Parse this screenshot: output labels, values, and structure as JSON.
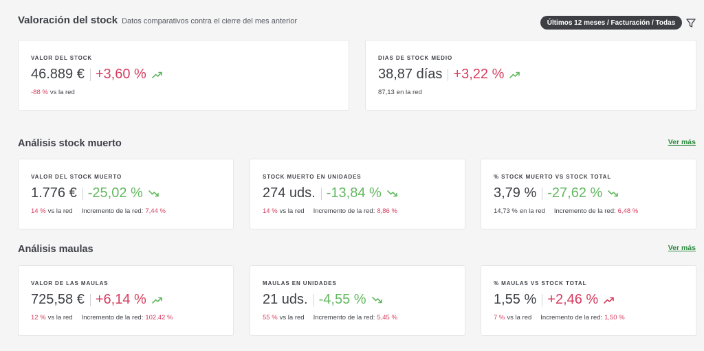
{
  "header": {
    "title": "Valoración del stock",
    "subtitle": "Datos comparativos contra el cierre del mes anterior",
    "filter_pill": "Últimos 12 meses / Facturación / Todas"
  },
  "valoracion": {
    "cards": [
      {
        "label": "VALOR DEL STOCK",
        "value": "46.889 €",
        "change": "+3,60 %",
        "trend": "up",
        "foot": {
          "network_value": "-88 %",
          "network_text": "vs la red"
        }
      },
      {
        "label": "DIAS DE STOCK MEDIO",
        "value": "38,87 días",
        "change": "+3,22 %",
        "trend": "up",
        "foot": {
          "network_value": "87,13",
          "network_text": "en la red"
        }
      }
    ]
  },
  "stock_muerto": {
    "title": "Análisis stock muerto",
    "ver_mas": "Ver más",
    "cards": [
      {
        "label": "VALOR DEL STOCK MUERTO",
        "value": "1.776 €",
        "change": "-25,02 %",
        "trend": "down",
        "foot": {
          "network_value": "14 %",
          "network_text": "vs la red",
          "increment_label": "Incremento de la red:",
          "increment_value": "7,44 %"
        }
      },
      {
        "label": "STOCK MUERTO EN UNIDADES",
        "value": "274 uds.",
        "change": "-13,84 %",
        "trend": "down",
        "foot": {
          "network_value": "14 %",
          "network_text": "vs la red",
          "increment_label": "Incremento de la red:",
          "increment_value": "8,86 %"
        }
      },
      {
        "label": "% STOCK MUERTO VS STOCK TOTAL",
        "value": "3,79 %",
        "change": "-27,62 %",
        "trend": "down",
        "foot": {
          "network_value": "14,73 %",
          "network_text": "en la red",
          "increment_label": "Incremento de la red:",
          "increment_value": "6,48 %"
        }
      }
    ]
  },
  "maulas": {
    "title": "Análisis maulas",
    "ver_mas": "Ver más",
    "cards": [
      {
        "label": "VALOR DE LAS MAULAS",
        "value": "725,58 €",
        "change": "+6,14 %",
        "trend": "up",
        "foot": {
          "network_value": "12 %",
          "network_text": "vs la red",
          "increment_label": "Incremento de la red:",
          "increment_value": "102,42 %"
        }
      },
      {
        "label": "MAULAS EN UNIDADES",
        "value": "21 uds.",
        "change": "-4,55 %",
        "trend": "down",
        "foot": {
          "network_value": "55 %",
          "network_text": "vs la red",
          "increment_label": "Incremento de la red:",
          "increment_value": "5,45 %"
        }
      },
      {
        "label": "% MAULAS VS STOCK TOTAL",
        "value": "1,55 %",
        "change": "+2,46 %",
        "trend": "up-red",
        "foot": {
          "network_value": "7 %",
          "network_text": "vs la red",
          "increment_label": "Incremento de la red:",
          "increment_value": "1,50 %"
        }
      }
    ]
  },
  "colors": {
    "red": "#d63c5e",
    "green": "#63b861",
    "link_green": "#2d8a3e",
    "pill_bg": "#3e3f44"
  }
}
